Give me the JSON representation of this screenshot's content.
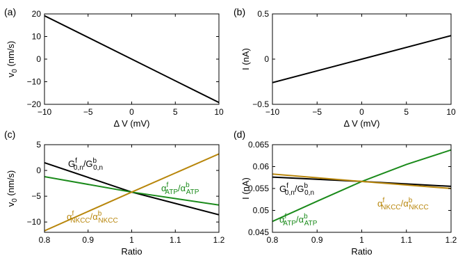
{
  "chart_data": [
    {
      "type": "line",
      "panel_label": "(a)",
      "xlabel": "Δ V (mV)",
      "ylabel": "v",
      "ylabel_sub": "0",
      "ylabel_suffix": " (nm/s)",
      "xlim": [
        -10,
        10
      ],
      "ylim": [
        -20,
        20
      ],
      "xticks": [
        -10,
        -5,
        0,
        5,
        10
      ],
      "yticks": [
        -20,
        -10,
        0,
        10,
        20
      ],
      "xtick_labels": [
        "−10",
        "−5",
        "0",
        "5",
        "10"
      ],
      "ytick_labels": [
        "−20",
        "−10",
        "0",
        "10",
        "20"
      ],
      "series": [
        {
          "color": "#000000",
          "x": [
            -10,
            10
          ],
          "y": [
            19.2,
            -19.2
          ]
        }
      ]
    },
    {
      "type": "line",
      "panel_label": "(b)",
      "xlabel": "Δ V (mV)",
      "ylabel": "I (nA)",
      "xlim": [
        -10,
        10
      ],
      "ylim": [
        -0.5,
        0.5
      ],
      "xticks": [
        -10,
        -5,
        0,
        5,
        10
      ],
      "yticks": [
        -0.5,
        0,
        0.5
      ],
      "xtick_labels": [
        "−10",
        "−5",
        "0",
        "5",
        "10"
      ],
      "ytick_labels": [
        "−0.5",
        "0",
        "0.5"
      ],
      "series": [
        {
          "color": "#000000",
          "x": [
            -10,
            10
          ],
          "y": [
            -0.26,
            0.26
          ]
        }
      ]
    },
    {
      "type": "line",
      "panel_label": "(c)",
      "xlabel": "Ratio",
      "ylabel": "v",
      "ylabel_sub": "0",
      "ylabel_suffix": " (nm/s)",
      "xlim": [
        0.8,
        1.2
      ],
      "ylim": [
        -12,
        5
      ],
      "xticks": [
        0.8,
        0.9,
        1.0,
        1.1,
        1.2
      ],
      "yticks": [
        -10,
        -5,
        0,
        5
      ],
      "xtick_labels": [
        "0.8",
        "0.9",
        "1",
        "1.1",
        "1.2"
      ],
      "ytick_labels": [
        "−10",
        "−5",
        "0",
        "5"
      ],
      "series": [
        {
          "color": "#000000",
          "x": [
            0.8,
            1.0,
            1.2
          ],
          "y": [
            1.5,
            -4.2,
            -8.6
          ]
        },
        {
          "color": "#1a8a1a",
          "x": [
            0.8,
            1.0,
            1.2
          ],
          "y": [
            -1.2,
            -4.2,
            -6.7
          ]
        },
        {
          "color": "#b8860b",
          "x": [
            0.8,
            1.0,
            1.2
          ],
          "y": [
            -11.7,
            -4.2,
            3.2
          ]
        }
      ],
      "annotations": [
        {
          "color": "#000000",
          "main1": "G",
          "sup1": "f",
          "sub1": "0,n",
          "main2": "/G",
          "sup2": "b",
          "sub2": "0,n"
        },
        {
          "color": "#1a8a1a",
          "main1": "α",
          "sup1": "f",
          "sub1": "ATP",
          "main2": "/α",
          "sup2": "b",
          "sub2": "ATP"
        },
        {
          "color": "#b8860b",
          "main1": "α",
          "sup1": "f",
          "sub1": "NKCC",
          "main2": "/α",
          "sup2": "b",
          "sub2": "NKCC"
        }
      ]
    },
    {
      "type": "line",
      "panel_label": "(d)",
      "xlabel": "Ratio",
      "ylabel": "I (nA)",
      "xlim": [
        0.8,
        1.2
      ],
      "ylim": [
        0.045,
        0.065
      ],
      "xticks": [
        0.8,
        0.9,
        1.0,
        1.1,
        1.2
      ],
      "yticks": [
        0.045,
        0.05,
        0.055,
        0.06,
        0.065
      ],
      "xtick_labels": [
        "0.8",
        "0.9",
        "1",
        "1.1",
        "1.2"
      ],
      "ytick_labels": [
        "0.045",
        "0.05",
        "0.055",
        "0.06",
        "0.065"
      ],
      "series": [
        {
          "color": "#000000",
          "x": [
            0.8,
            1.0,
            1.2
          ],
          "y": [
            0.0576,
            0.0566,
            0.0555
          ]
        },
        {
          "color": "#1a8a1a",
          "x": [
            0.8,
            0.9,
            1.0,
            1.1,
            1.2
          ],
          "y": [
            0.0475,
            0.0521,
            0.0566,
            0.0605,
            0.0638
          ]
        },
        {
          "color": "#b8860b",
          "x": [
            0.8,
            1.0,
            1.2
          ],
          "y": [
            0.0583,
            0.0566,
            0.055
          ]
        }
      ],
      "annotations": [
        {
          "color": "#000000",
          "main1": "G",
          "sup1": "f",
          "sub1": "0,n",
          "main2": "/G",
          "sup2": "b",
          "sub2": "0,n"
        },
        {
          "color": "#b8860b",
          "main1": "α",
          "sup1": "f",
          "sub1": "NKCC",
          "main2": "/α",
          "sup2": "b",
          "sub2": "NKCC"
        },
        {
          "color": "#1a8a1a",
          "main1": "α",
          "sup1": "f",
          "sub1": "ATP",
          "main2": "/α",
          "sup2": "b",
          "sub2": "ATP"
        }
      ]
    }
  ]
}
